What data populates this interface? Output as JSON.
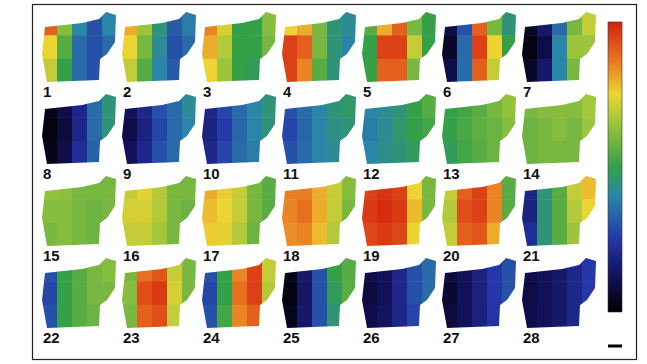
{
  "chart_data": {
    "type": "heatmap",
    "tick_labels": false,
    "colorbar_range": [
      0,
      1
    ],
    "panels": [
      {
        "label": "1",
        "cells": [
          [
            0.9,
            0.62,
            0.4,
            0.3,
            0.4
          ],
          [
            0.75,
            0.55,
            0.35,
            0.3,
            0.35
          ],
          [
            0.7,
            0.5,
            0.35,
            0.3,
            0.3
          ]
        ]
      },
      {
        "label": "2",
        "cells": [
          [
            0.8,
            0.65,
            0.45,
            0.32,
            0.38
          ],
          [
            0.75,
            0.6,
            0.42,
            0.3,
            0.35
          ],
          [
            0.7,
            0.55,
            0.4,
            0.32,
            0.35
          ]
        ]
      },
      {
        "label": "3",
        "cells": [
          [
            0.85,
            0.72,
            0.5,
            0.5,
            0.62
          ],
          [
            0.8,
            0.68,
            0.5,
            0.5,
            0.6
          ],
          [
            0.75,
            0.65,
            0.5,
            0.48,
            0.55
          ]
        ]
      },
      {
        "label": "4",
        "cells": [
          [
            0.75,
            0.8,
            0.6,
            0.45,
            0.42
          ],
          [
            0.95,
            0.9,
            0.6,
            0.45,
            0.4
          ],
          [
            0.95,
            0.85,
            0.55,
            0.45,
            0.4
          ]
        ]
      },
      {
        "label": "5",
        "cells": [
          [
            0.55,
            0.8,
            0.9,
            0.6,
            0.5
          ],
          [
            0.5,
            0.95,
            0.95,
            0.7,
            0.5
          ],
          [
            0.5,
            0.9,
            0.9,
            0.6,
            0.5
          ]
        ]
      },
      {
        "label": "6",
        "cells": [
          [
            0.1,
            0.3,
            0.9,
            0.6,
            0.45
          ],
          [
            0.05,
            0.35,
            0.95,
            0.75,
            0.5
          ],
          [
            0.1,
            0.35,
            0.9,
            0.7,
            0.45
          ]
        ]
      },
      {
        "label": "7",
        "cells": [
          [
            0.05,
            0.15,
            0.35,
            0.6,
            0.7
          ],
          [
            0.02,
            0.1,
            0.4,
            0.65,
            0.65
          ],
          [
            0.05,
            0.15,
            0.4,
            0.6,
            0.6
          ]
        ]
      },
      {
        "label": "8",
        "cells": [
          [
            0.03,
            0.1,
            0.2,
            0.35,
            0.45
          ],
          [
            0.02,
            0.08,
            0.2,
            0.35,
            0.45
          ],
          [
            0.03,
            0.1,
            0.22,
            0.33,
            0.4
          ]
        ]
      },
      {
        "label": "9",
        "cells": [
          [
            0.12,
            0.2,
            0.3,
            0.35,
            0.42
          ],
          [
            0.1,
            0.18,
            0.28,
            0.35,
            0.4
          ],
          [
            0.12,
            0.2,
            0.3,
            0.35,
            0.38
          ]
        ]
      },
      {
        "label": "10",
        "cells": [
          [
            0.2,
            0.28,
            0.35,
            0.4,
            0.45
          ],
          [
            0.18,
            0.26,
            0.34,
            0.4,
            0.45
          ],
          [
            0.2,
            0.28,
            0.35,
            0.38,
            0.42
          ]
        ]
      },
      {
        "label": "11",
        "cells": [
          [
            0.3,
            0.35,
            0.4,
            0.45,
            0.47
          ],
          [
            0.28,
            0.34,
            0.4,
            0.44,
            0.45
          ],
          [
            0.3,
            0.35,
            0.4,
            0.42,
            0.44
          ]
        ]
      },
      {
        "label": "12",
        "cells": [
          [
            0.4,
            0.42,
            0.45,
            0.5,
            0.55
          ],
          [
            0.38,
            0.42,
            0.46,
            0.5,
            0.52
          ],
          [
            0.4,
            0.43,
            0.45,
            0.48,
            0.5
          ]
        ]
      },
      {
        "label": "13",
        "cells": [
          [
            0.5,
            0.52,
            0.55,
            0.6,
            0.64
          ],
          [
            0.5,
            0.53,
            0.56,
            0.58,
            0.62
          ],
          [
            0.48,
            0.52,
            0.55,
            0.58,
            0.6
          ]
        ]
      },
      {
        "label": "14",
        "cells": [
          [
            0.6,
            0.62,
            0.62,
            0.62,
            0.66
          ],
          [
            0.58,
            0.6,
            0.62,
            0.6,
            0.65
          ],
          [
            0.58,
            0.6,
            0.6,
            0.6,
            0.62
          ]
        ]
      },
      {
        "label": "15",
        "cells": [
          [
            0.64,
            0.63,
            0.6,
            0.6,
            0.6
          ],
          [
            0.62,
            0.62,
            0.6,
            0.58,
            0.6
          ],
          [
            0.6,
            0.62,
            0.6,
            0.58,
            0.58
          ]
        ]
      },
      {
        "label": "16",
        "cells": [
          [
            0.7,
            0.74,
            0.68,
            0.6,
            0.6
          ],
          [
            0.72,
            0.72,
            0.68,
            0.6,
            0.58
          ],
          [
            0.7,
            0.7,
            0.66,
            0.6,
            0.58
          ]
        ]
      },
      {
        "label": "17",
        "cells": [
          [
            0.8,
            0.76,
            0.7,
            0.6,
            0.55
          ],
          [
            0.78,
            0.75,
            0.7,
            0.6,
            0.55
          ],
          [
            0.76,
            0.74,
            0.68,
            0.58,
            0.55
          ]
        ]
      },
      {
        "label": "18",
        "cells": [
          [
            0.86,
            0.86,
            0.8,
            0.7,
            0.62
          ],
          [
            0.85,
            0.88,
            0.8,
            0.7,
            0.6
          ],
          [
            0.84,
            0.85,
            0.78,
            0.68,
            0.6
          ]
        ]
      },
      {
        "label": "19",
        "cells": [
          [
            0.95,
            0.97,
            0.95,
            0.75,
            0.6
          ],
          [
            0.96,
            0.98,
            0.96,
            0.78,
            0.6
          ],
          [
            0.94,
            0.96,
            0.94,
            0.75,
            0.58
          ]
        ]
      },
      {
        "label": "20",
        "cells": [
          [
            0.7,
            0.9,
            0.95,
            0.85,
            0.55
          ],
          [
            0.68,
            0.93,
            0.95,
            0.85,
            0.55
          ],
          [
            0.7,
            0.9,
            0.92,
            0.8,
            0.52
          ]
        ]
      },
      {
        "label": "21",
        "cells": [
          [
            0.2,
            0.45,
            0.55,
            0.7,
            0.78
          ],
          [
            0.18,
            0.45,
            0.55,
            0.68,
            0.75
          ],
          [
            0.22,
            0.45,
            0.55,
            0.65,
            0.7
          ]
        ]
      },
      {
        "label": "22",
        "cells": [
          [
            0.3,
            0.5,
            0.55,
            0.6,
            0.62
          ],
          [
            0.28,
            0.5,
            0.55,
            0.6,
            0.6
          ],
          [
            0.3,
            0.5,
            0.55,
            0.58,
            0.58
          ]
        ]
      },
      {
        "label": "23",
        "cells": [
          [
            0.6,
            0.88,
            0.92,
            0.7,
            0.6
          ],
          [
            0.62,
            0.93,
            0.96,
            0.72,
            0.6
          ],
          [
            0.6,
            0.9,
            0.93,
            0.7,
            0.58
          ]
        ]
      },
      {
        "label": "24",
        "cells": [
          [
            0.3,
            0.5,
            0.85,
            0.95,
            0.7
          ],
          [
            0.28,
            0.5,
            0.88,
            0.95,
            0.68
          ],
          [
            0.3,
            0.52,
            0.85,
            0.9,
            0.65
          ]
        ]
      },
      {
        "label": "25",
        "cells": [
          [
            0.03,
            0.15,
            0.3,
            0.5,
            0.55
          ],
          [
            0.02,
            0.14,
            0.3,
            0.48,
            0.55
          ],
          [
            0.04,
            0.15,
            0.3,
            0.45,
            0.5
          ]
        ]
      },
      {
        "label": "26",
        "cells": [
          [
            0.1,
            0.12,
            0.2,
            0.3,
            0.35
          ],
          [
            0.08,
            0.12,
            0.2,
            0.3,
            0.35
          ],
          [
            0.1,
            0.13,
            0.2,
            0.28,
            0.32
          ]
        ]
      },
      {
        "label": "27",
        "cells": [
          [
            0.08,
            0.12,
            0.18,
            0.25,
            0.3
          ],
          [
            0.07,
            0.12,
            0.18,
            0.25,
            0.3
          ],
          [
            0.08,
            0.12,
            0.18,
            0.24,
            0.28
          ]
        ]
      },
      {
        "label": "28",
        "cells": [
          [
            0.1,
            0.12,
            0.15,
            0.2,
            0.25
          ],
          [
            0.09,
            0.12,
            0.15,
            0.2,
            0.25
          ],
          [
            0.1,
            0.12,
            0.15,
            0.2,
            0.24
          ]
        ]
      }
    ]
  }
}
